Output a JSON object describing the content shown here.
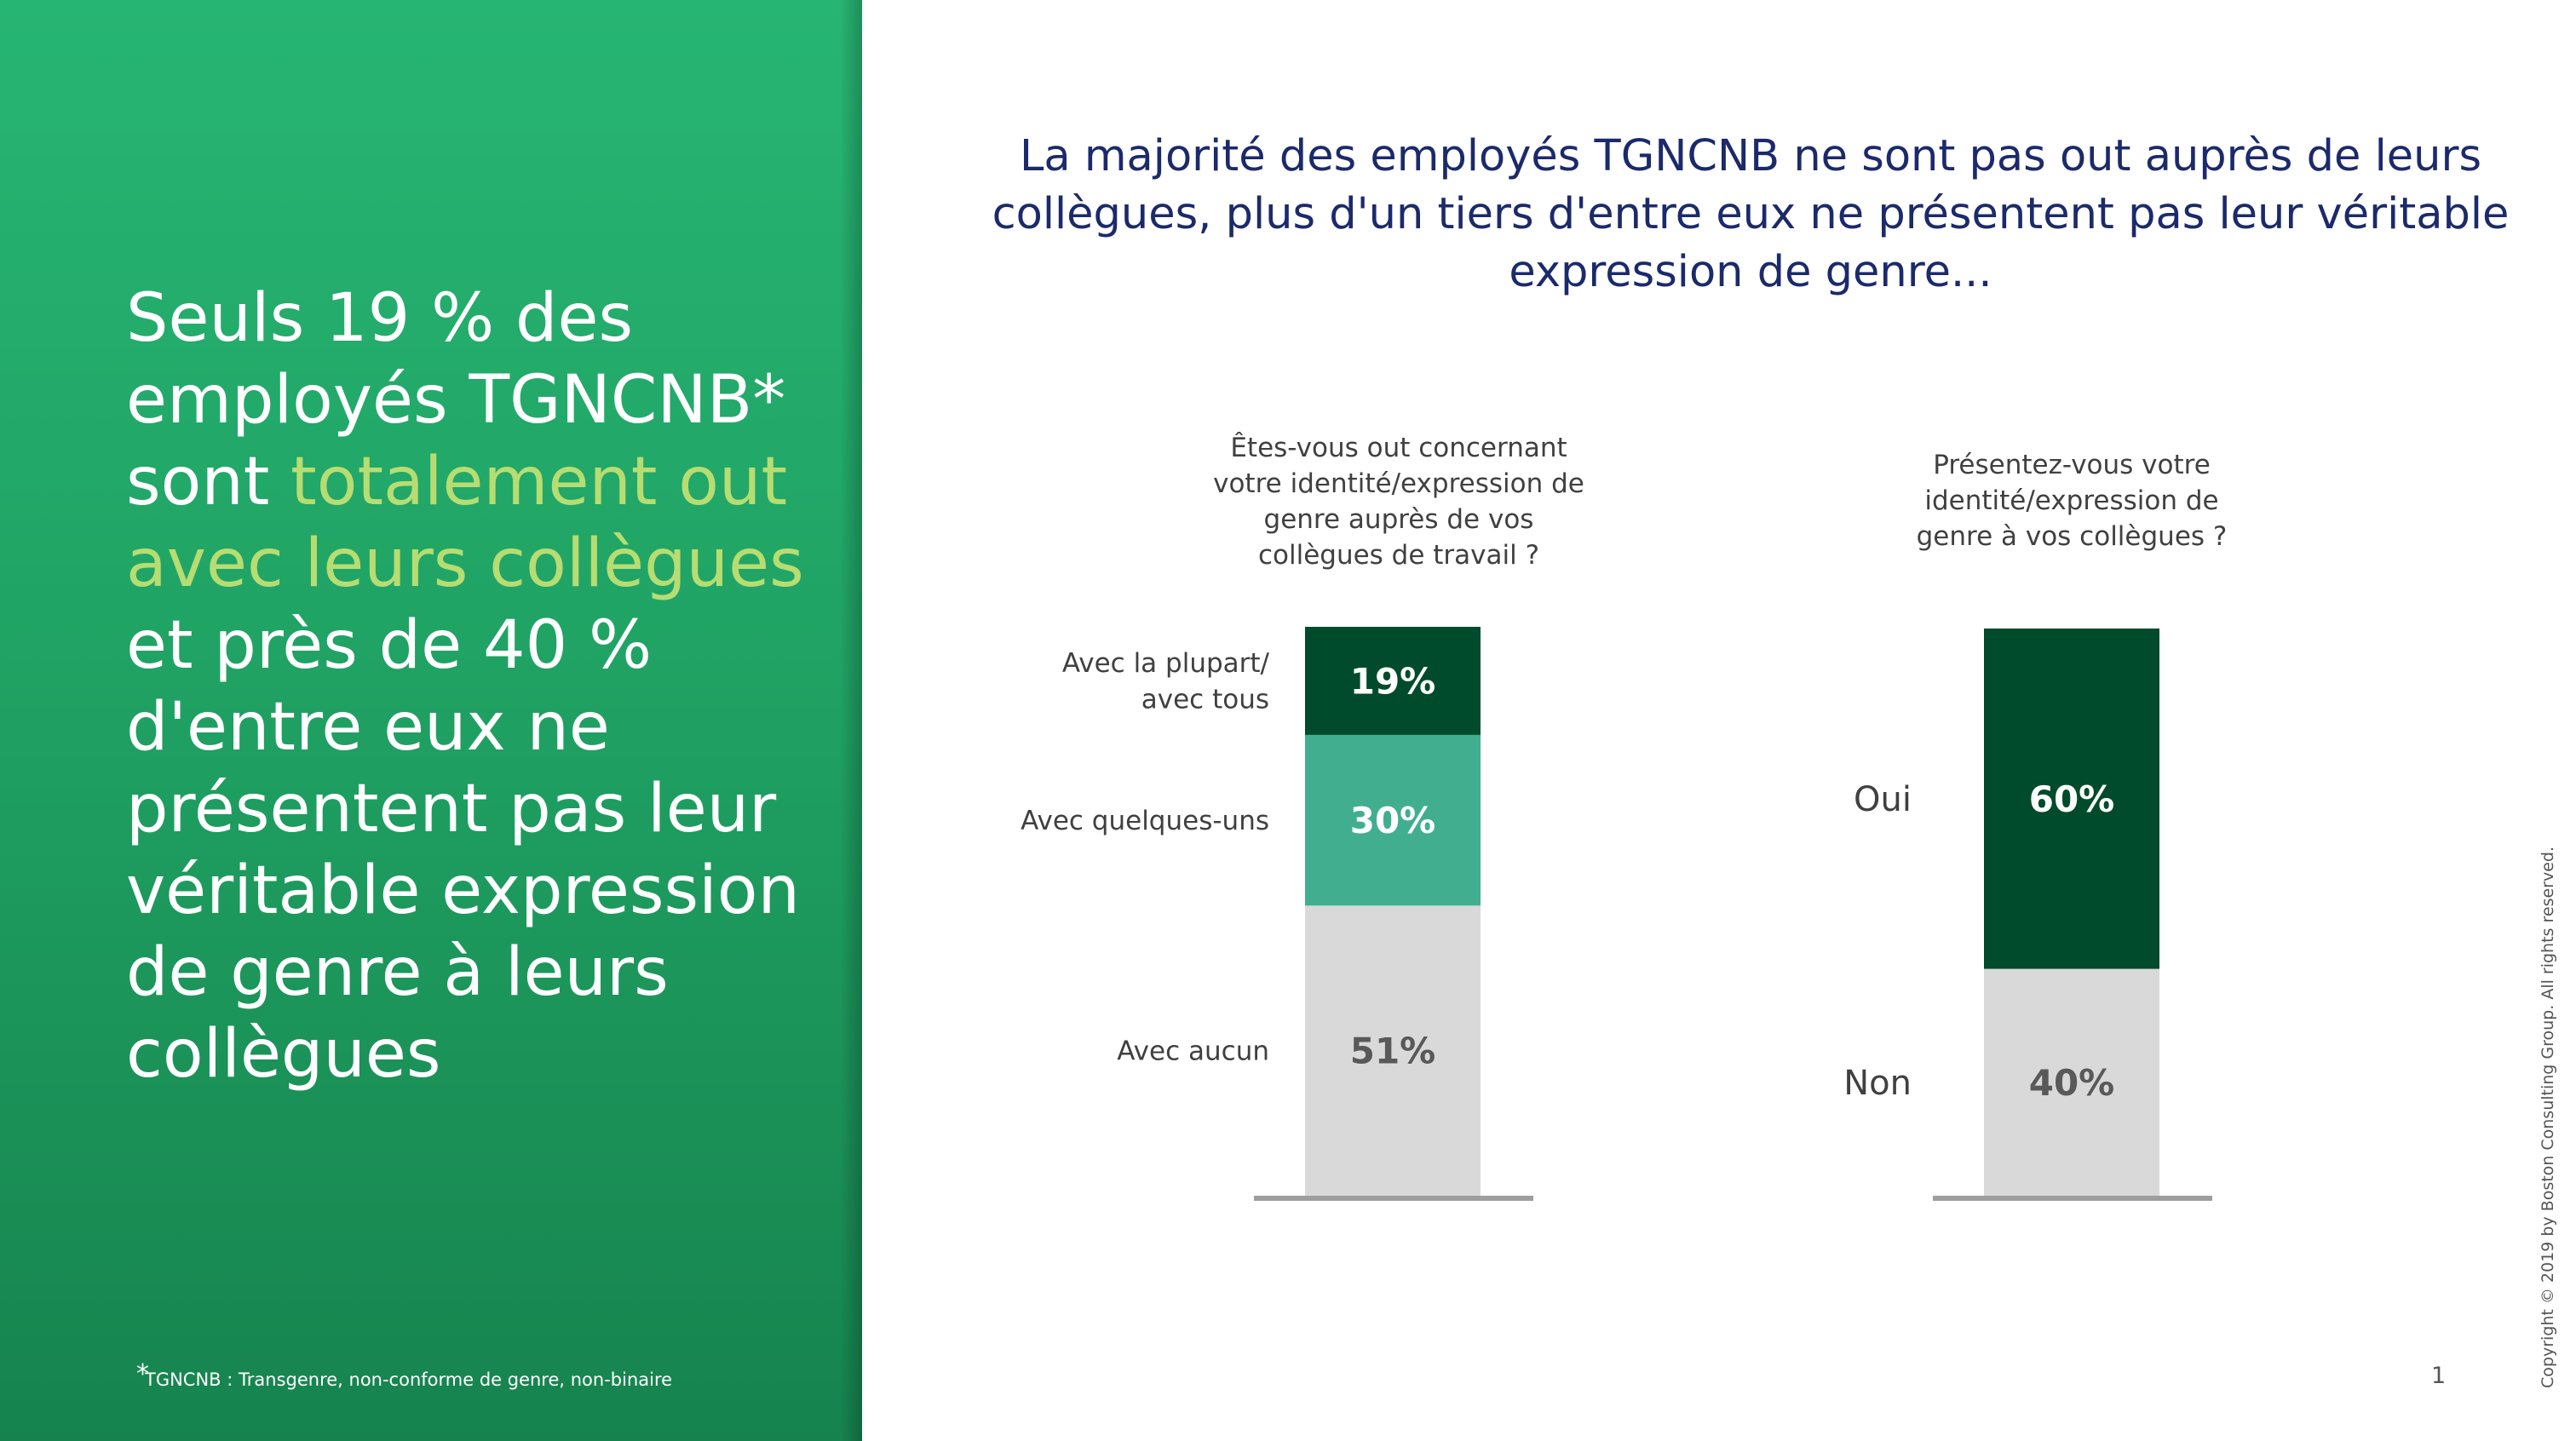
{
  "headline": {
    "part1": "Seuls 19 % des employés TGNCNB* sont ",
    "highlight": "totalement out avec leurs collègues",
    "part2": " et près de 40 % d'entre eux ne présentent pas leur véritable expression de genre à leurs collègues"
  },
  "footnote": {
    "star": "*",
    "text": "TGNCNB : Transgenre, non-conforme de genre, non-binaire"
  },
  "main_title": "La majorité des employés TGNCNB ne sont pas out auprès de leurs collègues, plus d'un tiers d'entre eux ne présentent pas leur véritable expression de genre...",
  "page_number": "1",
  "copyright": "Copyright © 2019 by Boston Consulting Group. All rights reserved.",
  "colors": {
    "dark_green": "#004b2b",
    "teal": "#41ae90",
    "light_gray": "#d9d9d9",
    "panel_green": "#22a867",
    "title_navy": "#1b2a6b",
    "highlight": "#b7dd72"
  },
  "chart_data": [
    {
      "type": "bar",
      "stacked": true,
      "title": "Êtes-vous out concernant votre identité/expression de genre auprès de vos collègues de travail ?",
      "title_lines": [
        "Êtes-vous out concernant",
        "votre identité/expression de",
        "genre auprès de vos",
        "collègues de travail ?"
      ],
      "unit": "%",
      "segments": [
        {
          "name": "Avec aucun",
          "label_lines": [
            "Avec aucun"
          ],
          "value": 51,
          "label": "51%",
          "color": "#d9d9d9",
          "text_color": "#595959"
        },
        {
          "name": "Avec quelques-uns",
          "label_lines": [
            "Avec quelques-uns"
          ],
          "value": 30,
          "label": "30%",
          "color": "#41ae90",
          "text_color": "#ffffff"
        },
        {
          "name": "Avec la plupart/ avec tous",
          "label_lines": [
            "Avec la plupart/",
            "avec tous"
          ],
          "value": 19,
          "label": "19%",
          "color": "#004b2b",
          "text_color": "#ffffff"
        }
      ]
    },
    {
      "type": "bar",
      "stacked": true,
      "title": "Présentez-vous votre identité/expression de genre à vos collègues ?",
      "title_lines": [
        "Présentez-vous votre",
        "identité/expression de",
        "genre à vos collègues ?"
      ],
      "unit": "%",
      "segments": [
        {
          "name": "Non",
          "label_lines": [
            "Non"
          ],
          "value": 40,
          "label": "40%",
          "color": "#d9d9d9",
          "text_color": "#595959"
        },
        {
          "name": "Oui",
          "label_lines": [
            "Oui"
          ],
          "value": 60,
          "label": "60%",
          "color": "#004b2b",
          "text_color": "#ffffff"
        }
      ]
    }
  ]
}
